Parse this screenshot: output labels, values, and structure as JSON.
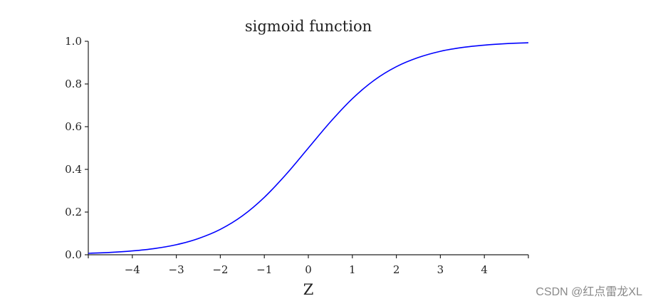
{
  "chart_data": {
    "type": "line",
    "title": "sigmoid function",
    "xlabel": "Z",
    "ylabel": "",
    "xlim": [
      -5,
      5
    ],
    "ylim": [
      0,
      1
    ],
    "x_ticks": [
      -4,
      -3,
      -2,
      -1,
      0,
      1,
      2,
      3,
      4
    ],
    "x_tick_labels": [
      "−4",
      "−3",
      "−2",
      "−1",
      "0",
      "1",
      "2",
      "3",
      "4"
    ],
    "y_ticks": [
      0,
      0.2,
      0.4,
      0.6,
      0.8,
      1.0
    ],
    "y_tick_labels": [
      "0.0",
      "0.2",
      "0.4",
      "0.6",
      "0.8",
      "1.0"
    ],
    "grid": false,
    "series": [
      {
        "color": "#0000ff",
        "x": [
          -5,
          -4.5,
          -4,
          -3.5,
          -3,
          -2.5,
          -2,
          -1.5,
          -1,
          -0.5,
          0,
          0.5,
          1,
          1.5,
          2,
          2.5,
          3,
          3.5,
          4,
          4.5,
          5
        ],
        "y": [
          0.007,
          0.011,
          0.018,
          0.029,
          0.047,
          0.076,
          0.119,
          0.182,
          0.269,
          0.378,
          0.5,
          0.622,
          0.731,
          0.818,
          0.881,
          0.924,
          0.953,
          0.971,
          0.982,
          0.989,
          0.993
        ]
      }
    ]
  },
  "watermark": "CSDN @红点雷龙XL"
}
